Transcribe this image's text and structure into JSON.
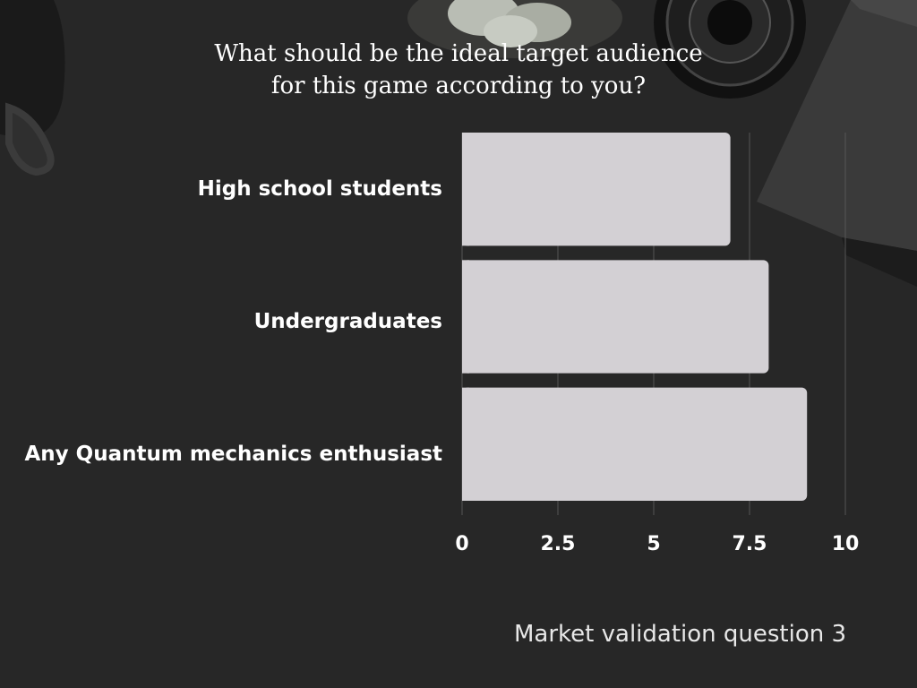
{
  "chart_data": {
    "type": "bar",
    "orientation": "horizontal",
    "title": "What should be the ideal target audience for this game according to you?",
    "categories": [
      "High school students",
      "Undergraduates",
      "Any Quantum mechanics enthusiast"
    ],
    "values": [
      7,
      8,
      9
    ],
    "xlim": [
      0,
      10
    ],
    "x_ticks": [
      "0",
      "2.5",
      "5",
      "7.5",
      "10"
    ],
    "x_tick_values": [
      0,
      2.5,
      5,
      7.5,
      10
    ],
    "grid": true,
    "bar_color": "#d3d0d4"
  },
  "caption": "Market validation question 3",
  "colors": {
    "background": "#262626",
    "text": "#ffffff"
  }
}
